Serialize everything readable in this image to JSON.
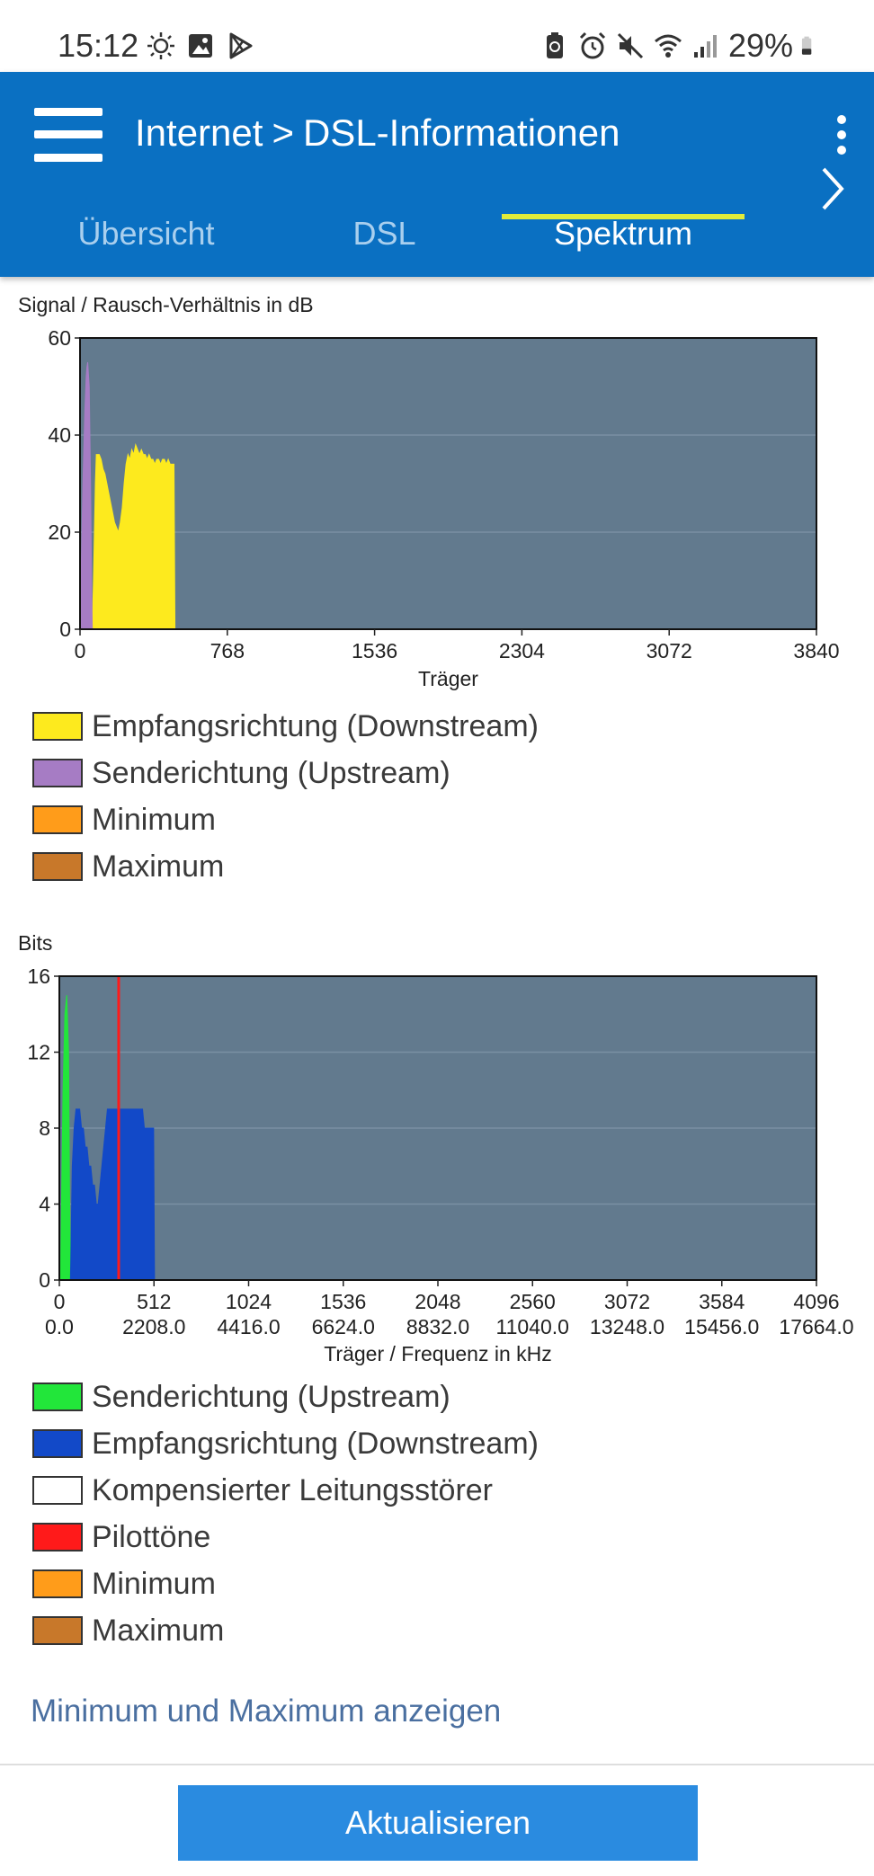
{
  "status_bar": {
    "time": "15:12",
    "battery": "29%",
    "left_icons": [
      "weather-sun-icon",
      "gallery-icon",
      "play-store-icon"
    ],
    "right_icons": [
      "recycle-battery-icon",
      "alarm-icon",
      "mute-icon",
      "wifi-icon",
      "signal-icon",
      "battery-icon"
    ]
  },
  "header": {
    "breadcrumb": [
      "Internet",
      "DSL-Informationen"
    ],
    "separator": ">",
    "accent_color": "#0a70c2"
  },
  "tabs": [
    {
      "label": "Übersicht",
      "active": false
    },
    {
      "label": "DSL",
      "active": false
    },
    {
      "label": "Spektrum",
      "active": true
    }
  ],
  "chart_data": [
    {
      "type": "area",
      "title": "Signal / Rausch-Verhältnis in dB",
      "xlabel": "Träger",
      "ylabel": "",
      "xlim": [
        0,
        3840
      ],
      "ylim": [
        0,
        60
      ],
      "x_ticks": [
        "0",
        "768",
        "1536",
        "2304",
        "3072",
        "3840"
      ],
      "y_ticks": [
        "0",
        "20",
        "40",
        "60"
      ],
      "grid": true,
      "background": "#627a8e",
      "series": [
        {
          "name": "Empfangsrichtung (Downstream)",
          "color": "#fdea1e",
          "x": [
            64,
            70,
            80,
            85,
            90,
            100,
            110,
            120,
            130,
            140,
            150,
            160,
            170,
            180,
            190,
            200,
            210,
            220,
            230,
            240,
            250,
            260,
            270,
            280,
            290,
            300,
            310,
            320,
            330,
            340,
            350,
            360,
            370,
            380,
            390,
            400,
            410,
            420,
            430,
            440,
            450,
            460,
            470,
            480,
            490,
            495
          ],
          "y": [
            0,
            10,
            30,
            36,
            36,
            36,
            35,
            33,
            32,
            30,
            28,
            26,
            24,
            22,
            21,
            20,
            22,
            25,
            30,
            34,
            36,
            35,
            37,
            36,
            38,
            37,
            36,
            37,
            36,
            36,
            35,
            36,
            35,
            35,
            34,
            35,
            35,
            34,
            35,
            35,
            34,
            35,
            34,
            34,
            34,
            0
          ]
        },
        {
          "name": "Senderichtung (Upstream)",
          "color": "#a67cc4",
          "x": [
            0,
            5,
            15,
            25,
            32,
            36,
            40,
            48,
            55,
            60,
            64
          ],
          "y": [
            0,
            10,
            30,
            45,
            52,
            54,
            55,
            50,
            30,
            10,
            0
          ]
        },
        {
          "name": "Minimum",
          "color": "#ff9c1a"
        },
        {
          "name": "Maximum",
          "color": "#c8782a"
        }
      ]
    },
    {
      "type": "area",
      "title": "Bits",
      "xlabel": "Träger / Frequenz in kHz",
      "ylabel": "",
      "xlim": [
        0,
        4096
      ],
      "ylim": [
        0,
        16
      ],
      "x_ticks": [
        "0",
        "512",
        "1024",
        "1536",
        "2048",
        "2560",
        "3072",
        "3584",
        "4096"
      ],
      "x_ticks_secondary": [
        "0.0",
        "2208.0",
        "4416.0",
        "6624.0",
        "8832.0",
        "11040.0",
        "13248.0",
        "15456.0",
        "17664.0"
      ],
      "y_ticks": [
        "0",
        "4",
        "8",
        "12",
        "16"
      ],
      "grid": true,
      "background": "#627a8e",
      "series": [
        {
          "name": "Senderichtung (Upstream)",
          "color": "#22e63a",
          "x": [
            6,
            20,
            30,
            40,
            50,
            55,
            60
          ],
          "y": [
            0,
            10,
            14,
            15,
            12,
            5,
            0
          ]
        },
        {
          "name": "Empfangsrichtung (Downstream)",
          "color": "#1249c8",
          "x": [
            60,
            70,
            80,
            90,
            100,
            110,
            120,
            130,
            140,
            150,
            160,
            170,
            180,
            190,
            200,
            210,
            220,
            230,
            240,
            250,
            260,
            270,
            280,
            290,
            300,
            310,
            320,
            330,
            340,
            350,
            360,
            370,
            380,
            390,
            400,
            410,
            420,
            430,
            440,
            450,
            460,
            470,
            480,
            490,
            500,
            510,
            515
          ],
          "y": [
            0,
            6,
            8,
            9,
            9,
            9,
            8,
            8,
            7,
            7,
            6,
            6,
            5,
            5,
            4,
            4,
            5,
            6,
            7,
            8,
            9,
            9,
            9,
            9,
            9,
            9,
            9,
            9,
            9,
            9,
            9,
            9,
            9,
            9,
            9,
            9,
            9,
            9,
            9,
            9,
            8,
            8,
            8,
            8,
            8,
            8,
            0
          ]
        },
        {
          "name": "Kompensierter Leitungsstörer",
          "color": "#ffffff"
        },
        {
          "name": "Pilottöne",
          "color": "#ff1a1a",
          "x": [
            321
          ],
          "y": [
            16
          ]
        },
        {
          "name": "Minimum",
          "color": "#ff9c1a"
        },
        {
          "name": "Maximum",
          "color": "#c8782a"
        }
      ]
    }
  ],
  "link": {
    "label": "Minimum und Maximum anzeigen"
  },
  "footer": {
    "refresh_label": "Aktualisieren"
  }
}
